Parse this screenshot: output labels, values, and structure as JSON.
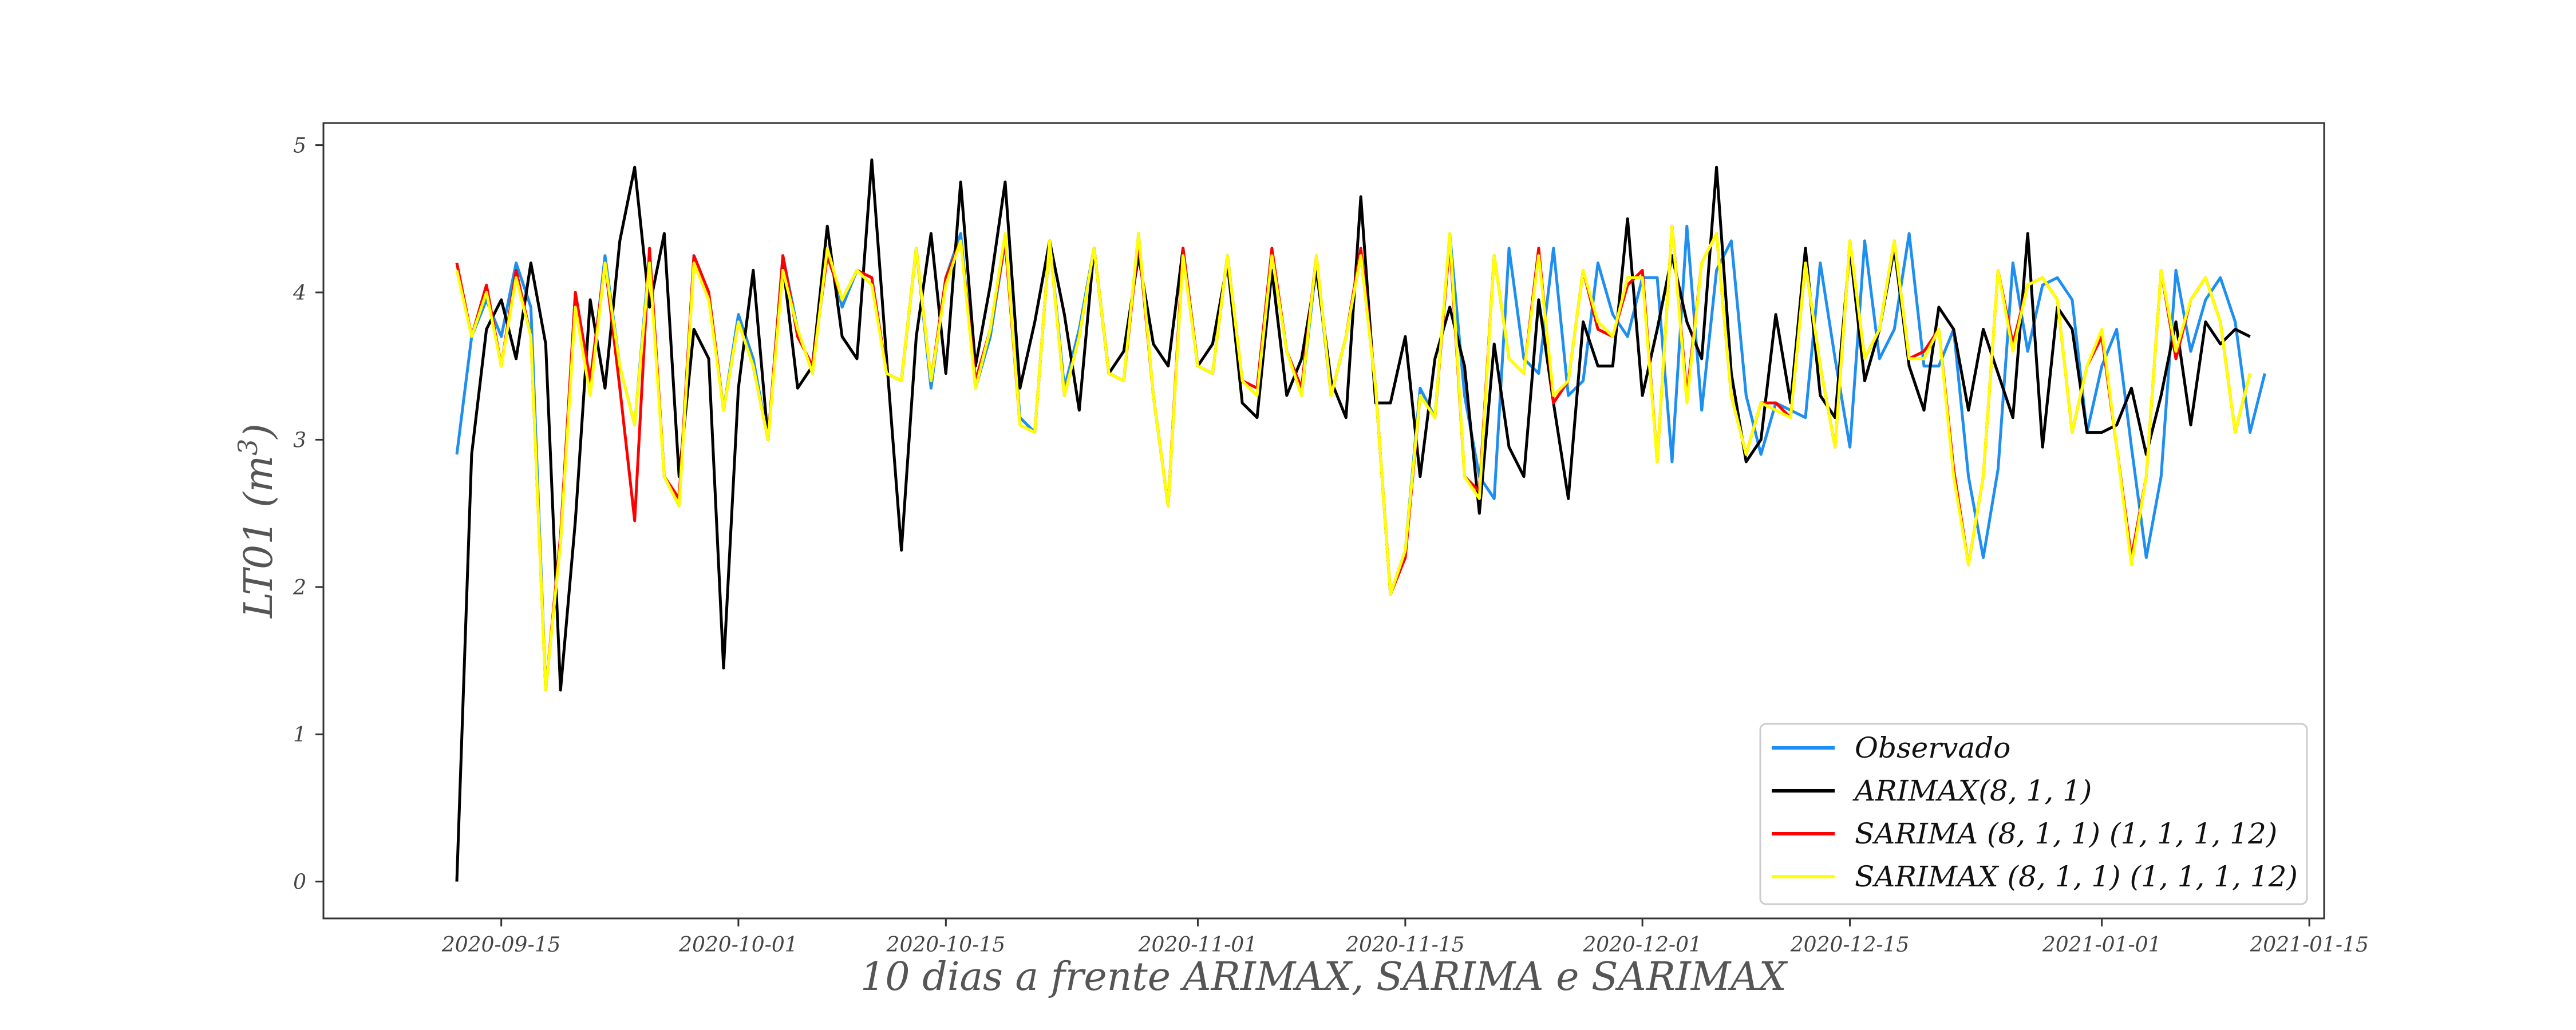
{
  "chart_data": {
    "type": "line",
    "xlabel": "10 dias a frente ARIMAX, SARIMA e SARIMAX",
    "ylabel": "LT01 (m³)",
    "ylabel_base": "LT01 (m",
    "ylabel_sup": "3",
    "ylabel_close": ")",
    "xlim": [
      "2020-09-03",
      "2021-01-16"
    ],
    "ylim": [
      -0.25,
      5.15
    ],
    "x_ticks": [
      "2020-09-15",
      "2020-10-01",
      "2020-10-15",
      "2020-11-01",
      "2020-11-15",
      "2020-12-01",
      "2020-12-15",
      "2021-01-01",
      "2021-01-15"
    ],
    "y_ticks": [
      "0",
      "1",
      "2",
      "3",
      "4",
      "5"
    ],
    "grid": false,
    "legend_position": "lower-right",
    "colors": {
      "Observado": "#1f8ef1",
      "ARIMAX": "#000000",
      "SARIMA": "#ff0000",
      "SARIMAX": "#ffff00"
    },
    "series": [
      {
        "name": "Observado",
        "color": "#1f8ef1",
        "start": "2020-09-12",
        "values": [
          2.9,
          3.7,
          3.95,
          3.7,
          4.2,
          3.9,
          1.3,
          2.3,
          4.0,
          3.35,
          4.25,
          3.5,
          3.1,
          4.25,
          2.75,
          2.55,
          4.25,
          4.0,
          3.2,
          3.85,
          3.55,
          3.0,
          4.25,
          3.75,
          3.45,
          4.3,
          3.9,
          4.15,
          4.1,
          3.45,
          3.4,
          4.3,
          3.35,
          4.1,
          4.4,
          3.35,
          3.7,
          4.35,
          3.15,
          3.05,
          4.35,
          3.35,
          3.75,
          4.3,
          3.45,
          3.4,
          4.4,
          3.3,
          2.55,
          4.25,
          3.5,
          3.45,
          4.25,
          3.4,
          3.3,
          4.25,
          3.6,
          3.3,
          4.2,
          3.3,
          3.7,
          4.25,
          3.35,
          1.95,
          2.25,
          3.35,
          3.15,
          4.4,
          3.3,
          2.75,
          2.6,
          4.3,
          3.55,
          3.45,
          4.3,
          3.3,
          3.4,
          4.2,
          3.85,
          3.7,
          4.1,
          4.1,
          2.85,
          4.45,
          3.2,
          4.15,
          4.35,
          3.3,
          2.9,
          3.25,
          3.2,
          3.15,
          4.2,
          3.55,
          2.95,
          4.35,
          3.55,
          3.75,
          4.4,
          3.5,
          3.5,
          3.75,
          2.75,
          2.2,
          2.8,
          4.2,
          3.6,
          4.05,
          4.1,
          3.95,
          3.05,
          3.5,
          3.75,
          2.95,
          2.2,
          2.75,
          4.15,
          3.6,
          3.95,
          4.1,
          3.8,
          3.05,
          3.45
        ]
      },
      {
        "name": "ARIMAX(8, 1, 1)",
        "color": "#000000",
        "start": "2020-09-12",
        "values": [
          0.0,
          2.9,
          3.75,
          3.95,
          3.55,
          4.2,
          3.65,
          1.3,
          2.45,
          3.95,
          3.35,
          4.35,
          4.85,
          3.9,
          4.4,
          2.75,
          3.75,
          3.55,
          1.45,
          3.35,
          4.15,
          3.0,
          4.2,
          3.35,
          3.5,
          4.45,
          3.7,
          3.55,
          4.9,
          3.55,
          2.25,
          3.7,
          4.4,
          3.45,
          4.75,
          3.5,
          4.05,
          4.75,
          3.35,
          3.8,
          4.35,
          3.85,
          3.2,
          4.3,
          3.45,
          3.6,
          4.25,
          3.65,
          3.5,
          4.3,
          3.5,
          3.65,
          4.2,
          3.25,
          3.15,
          4.15,
          3.3,
          3.55,
          4.15,
          3.4,
          3.15,
          4.65,
          3.25,
          3.25,
          3.7,
          2.75,
          3.55,
          3.9,
          3.5,
          2.5,
          3.65,
          2.95,
          2.75,
          3.95,
          3.25,
          2.6,
          3.8,
          3.5,
          3.5,
          4.5,
          3.3,
          3.75,
          4.25,
          3.8,
          3.55,
          4.85,
          3.45,
          2.85,
          3.0,
          3.85,
          3.25,
          4.3,
          3.3,
          3.15,
          4.3,
          3.4,
          3.75,
          4.3,
          3.5,
          3.2,
          3.9,
          3.75,
          3.2,
          3.75,
          3.45,
          3.15,
          4.4,
          2.95,
          3.9,
          3.75,
          3.05,
          3.05,
          3.1,
          3.35,
          2.9,
          3.3,
          3.8,
          3.1,
          3.8,
          3.65,
          3.75,
          3.7
        ]
      },
      {
        "name": "SARIMA (8, 1, 1) (1, 1, 1, 12)",
        "color": "#ff0000",
        "start": "2020-09-12",
        "values": [
          4.2,
          3.7,
          4.05,
          3.5,
          4.15,
          3.7,
          1.3,
          2.35,
          4.0,
          3.4,
          4.2,
          3.35,
          2.45,
          4.3,
          2.75,
          2.6,
          4.25,
          4.0,
          3.2,
          3.8,
          3.5,
          3.0,
          4.25,
          3.7,
          3.5,
          4.25,
          3.95,
          4.15,
          4.1,
          3.45,
          3.4,
          4.3,
          3.4,
          4.1,
          4.35,
          3.4,
          3.75,
          4.35,
          3.1,
          3.05,
          4.35,
          3.3,
          3.7,
          4.3,
          3.45,
          3.4,
          4.35,
          3.3,
          2.55,
          4.3,
          3.5,
          3.45,
          4.25,
          3.4,
          3.35,
          4.3,
          3.6,
          3.35,
          4.25,
          3.3,
          3.7,
          4.3,
          3.35,
          1.95,
          2.2,
          3.3,
          3.15,
          4.35,
          2.75,
          2.65,
          4.25,
          3.55,
          3.45,
          4.3,
          3.25,
          3.4,
          4.15,
          3.75,
          3.7,
          4.05,
          4.15,
          2.85,
          4.45,
          3.3,
          4.2,
          4.4,
          3.3,
          2.9,
          3.25,
          3.25,
          3.15,
          4.2,
          3.5,
          2.95,
          4.35,
          3.55,
          3.75,
          4.35,
          3.55,
          3.6,
          3.75,
          2.8,
          2.15,
          2.75,
          4.15,
          3.65,
          4.05,
          4.1,
          3.95,
          3.05,
          3.5,
          3.7,
          2.95,
          2.2,
          2.75,
          4.15,
          3.55,
          3.95,
          4.1,
          3.8,
          3.05,
          3.45
        ]
      },
      {
        "name": "SARIMAX (8, 1, 1) (1, 1, 1, 12)",
        "color": "#ffff00",
        "start": "2020-09-12",
        "values": [
          4.15,
          3.7,
          4.0,
          3.5,
          4.1,
          3.7,
          1.3,
          2.3,
          3.9,
          3.3,
          4.2,
          3.5,
          3.1,
          4.2,
          2.75,
          2.55,
          4.2,
          3.95,
          3.2,
          3.8,
          3.5,
          3.0,
          4.15,
          3.75,
          3.45,
          4.3,
          3.95,
          4.15,
          4.05,
          3.45,
          3.4,
          4.3,
          3.4,
          4.05,
          4.35,
          3.35,
          3.75,
          4.4,
          3.1,
          3.05,
          4.35,
          3.3,
          3.7,
          4.3,
          3.45,
          3.4,
          4.4,
          3.3,
          2.55,
          4.25,
          3.5,
          3.45,
          4.25,
          3.4,
          3.3,
          4.25,
          3.6,
          3.3,
          4.25,
          3.3,
          3.7,
          4.25,
          3.35,
          1.95,
          2.25,
          3.3,
          3.15,
          4.4,
          2.75,
          2.6,
          4.25,
          3.55,
          3.45,
          4.25,
          3.3,
          3.4,
          4.15,
          3.8,
          3.7,
          4.1,
          4.1,
          2.85,
          4.45,
          3.25,
          4.2,
          4.4,
          3.3,
          2.9,
          3.25,
          3.2,
          3.15,
          4.2,
          3.5,
          2.95,
          4.35,
          3.55,
          3.75,
          4.35,
          3.55,
          3.55,
          3.75,
          2.75,
          2.15,
          2.75,
          4.15,
          3.6,
          4.05,
          4.1,
          3.95,
          3.05,
          3.5,
          3.75,
          2.95,
          2.15,
          2.75,
          4.15,
          3.6,
          3.95,
          4.1,
          3.8,
          3.05,
          3.45
        ]
      }
    ],
    "legend_entries": [
      "Observado",
      "ARIMAX(8, 1, 1)",
      "SARIMA (8, 1, 1) (1, 1, 1, 12)",
      "SARIMAX (8, 1, 1) (1, 1, 1, 12)"
    ]
  }
}
